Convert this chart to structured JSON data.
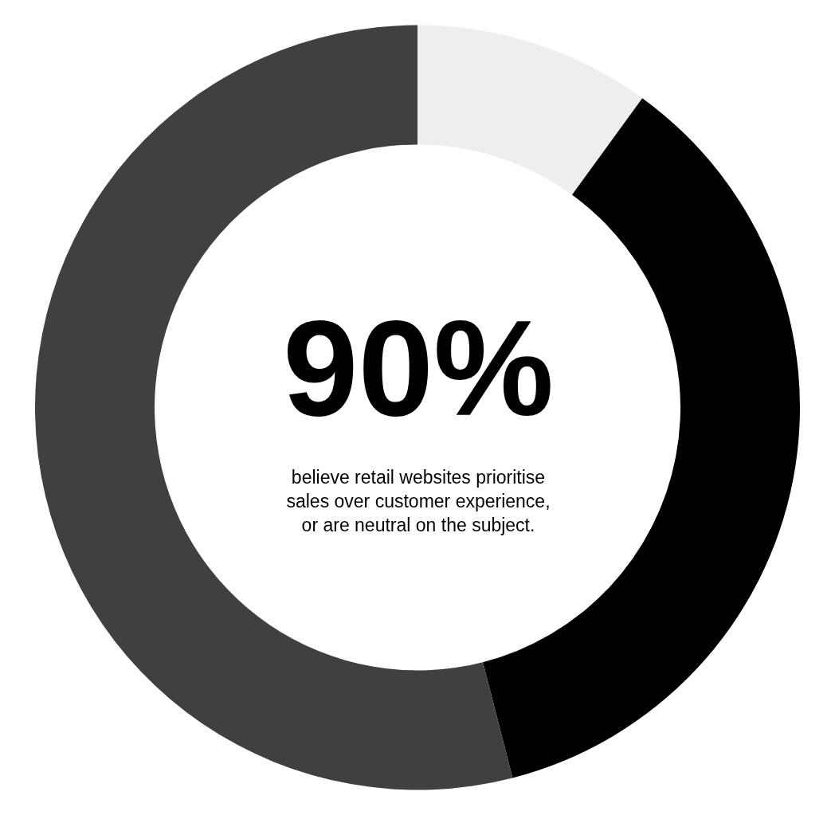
{
  "chart_data": {
    "type": "donut",
    "categories": [
      null,
      null,
      null
    ],
    "values": [
      10,
      36,
      54
    ],
    "colors": [
      "#eeeeee",
      "#000000",
      "#404040"
    ],
    "annotations": [
      "90%",
      "believe retail websites prioritise\nsales over customer experience,\nor are neutral on the subject."
    ]
  }
}
